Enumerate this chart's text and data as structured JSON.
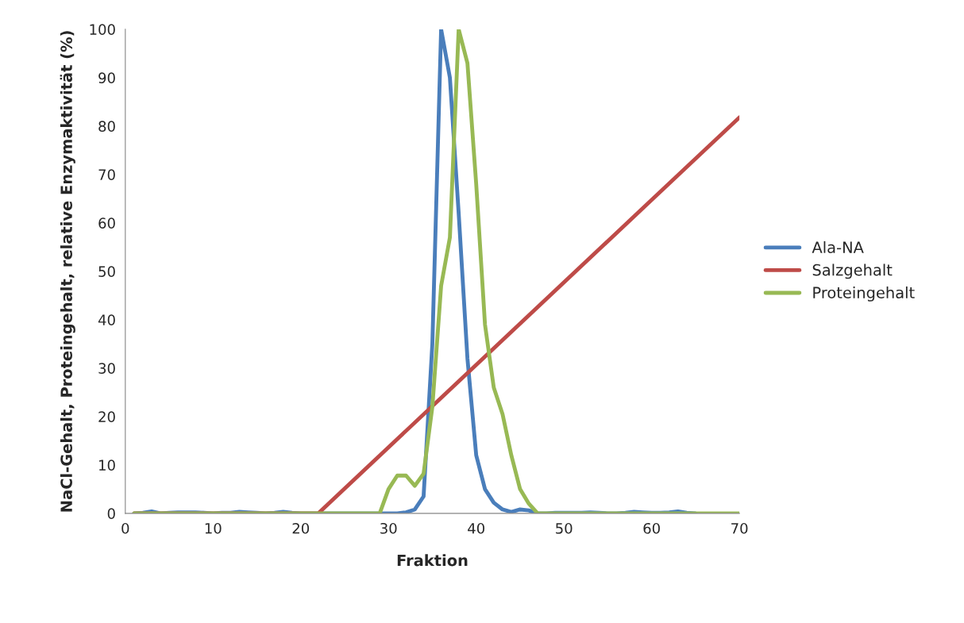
{
  "chart_data": {
    "type": "line",
    "xlabel": "Fraktion",
    "ylabel": "NaCl-Gehalt, Proteingehalt, relative Enzymaktivität (%)",
    "xlim": [
      0,
      70
    ],
    "xticks": [
      0,
      10,
      20,
      30,
      40,
      50,
      60,
      70
    ],
    "ylim": [
      0,
      100
    ],
    "yticks": [
      0,
      10,
      20,
      30,
      40,
      50,
      60,
      70,
      80,
      90,
      100
    ],
    "grid": false,
    "legend": "right",
    "marker": "none",
    "line_style": "solid",
    "series": [
      {
        "name": "Ala-NA",
        "color": "#4a7ebb",
        "x": [
          1,
          2,
          3,
          4,
          5,
          6,
          7,
          8,
          9,
          10,
          11,
          12,
          13,
          14,
          15,
          16,
          17,
          18,
          19,
          20,
          21,
          22,
          23,
          24,
          25,
          26,
          27,
          28,
          29,
          30,
          31,
          32,
          33,
          34,
          35,
          36,
          37,
          38,
          39,
          40,
          41,
          42,
          43,
          44,
          45,
          46,
          47,
          48,
          49,
          50,
          51,
          52,
          53,
          54,
          55,
          56,
          57,
          58,
          59,
          60,
          61,
          62,
          63,
          64,
          65
        ],
        "values": [
          0,
          0.1,
          0.4,
          0,
          0.1,
          0.2,
          0.2,
          0.2,
          0.1,
          0,
          0.1,
          0.1,
          0.3,
          0.2,
          0.1,
          0,
          0.1,
          0.3,
          0.1,
          0,
          0,
          0,
          0,
          0,
          0,
          0,
          0,
          0,
          0,
          0,
          0,
          0.2,
          0.8,
          3.5,
          35,
          100,
          90,
          62,
          32,
          12,
          5,
          2.2,
          0.8,
          0.3,
          0.8,
          0.6,
          0,
          0,
          0.1,
          0.1,
          0.1,
          0.1,
          0.2,
          0.1,
          0,
          0,
          0.1,
          0.3,
          0.2,
          0.1,
          0.1,
          0.2,
          0.4,
          0.1,
          0
        ]
      },
      {
        "name": "Salzgehalt",
        "color": "#be4b48",
        "x": [
          1,
          22,
          70
        ],
        "values": [
          0,
          0,
          81.8
        ]
      },
      {
        "name": "Proteingehalt",
        "color": "#98b954",
        "x": [
          1,
          2,
          3,
          4,
          5,
          6,
          7,
          8,
          9,
          10,
          11,
          12,
          13,
          14,
          15,
          16,
          17,
          18,
          19,
          20,
          21,
          22,
          23,
          24,
          25,
          26,
          27,
          28,
          29,
          30,
          31,
          32,
          33,
          34,
          35,
          36,
          37,
          38,
          39,
          40,
          41,
          42,
          43,
          44,
          45,
          46,
          47,
          48,
          49,
          50,
          51,
          52,
          53,
          54,
          55,
          56,
          57,
          58,
          59,
          60,
          61,
          62,
          63,
          64,
          65,
          66,
          67,
          68,
          69,
          70
        ],
        "values": [
          0,
          0,
          0,
          0,
          0,
          0,
          0,
          0,
          0,
          0,
          0,
          0,
          0,
          0,
          0,
          0,
          0,
          0,
          0,
          0,
          0,
          0,
          0,
          0,
          0,
          0,
          0,
          0,
          0,
          5,
          7.8,
          7.8,
          5.7,
          8.2,
          22,
          47,
          57,
          100,
          93,
          68,
          39,
          26,
          20.5,
          12,
          5,
          2,
          0,
          0,
          0,
          0,
          0,
          0,
          0,
          0,
          0,
          0,
          0,
          0,
          0,
          0,
          0,
          0,
          0,
          0,
          0,
          0,
          0,
          0,
          0,
          0
        ]
      }
    ]
  }
}
